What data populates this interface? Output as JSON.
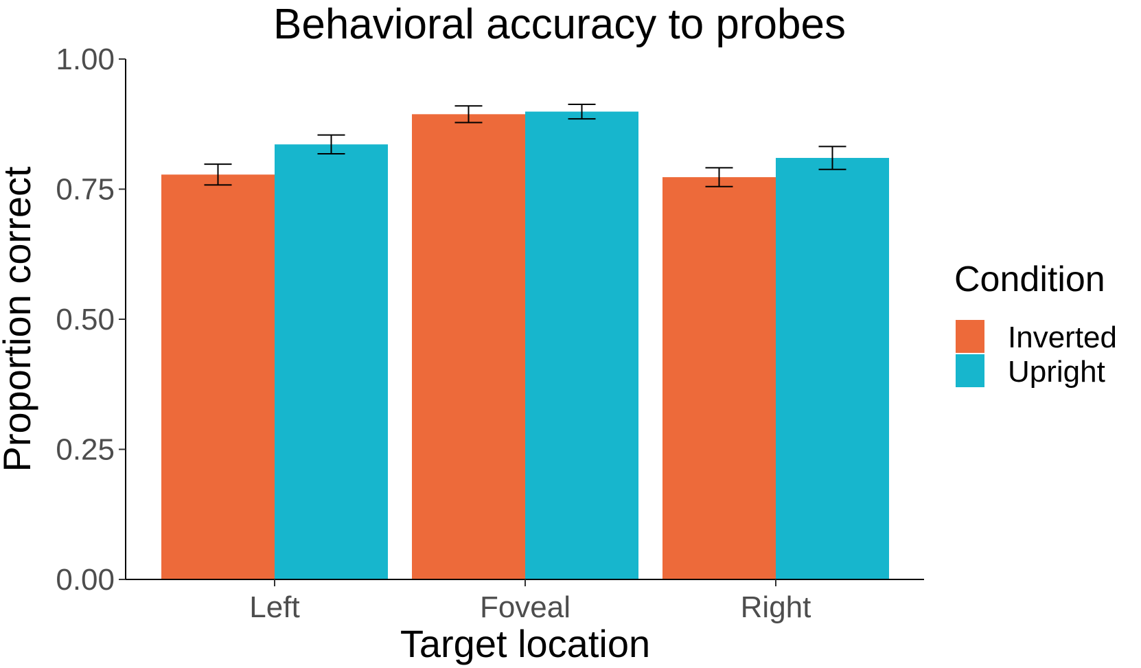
{
  "chart_data": {
    "type": "bar",
    "title": "Behavioral accuracy to probes",
    "xlabel": "Target location",
    "ylabel": "Proportion correct",
    "categories": [
      "Left",
      "Foveal",
      "Right"
    ],
    "ylim": [
      0,
      1
    ],
    "yticks": [
      "0.00",
      "0.25",
      "0.50",
      "0.75",
      "1.00"
    ],
    "ytick_values": [
      0,
      0.25,
      0.5,
      0.75,
      1.0
    ],
    "grid": false,
    "legend": {
      "title": "Condition",
      "position": "right"
    },
    "series": [
      {
        "name": "Inverted",
        "color": "#ED6A3A",
        "values": [
          0.778,
          0.894,
          0.773
        ],
        "error": [
          0.02,
          0.016,
          0.018
        ]
      },
      {
        "name": "Upright",
        "color": "#17B6CD",
        "values": [
          0.836,
          0.899,
          0.81
        ],
        "error": [
          0.018,
          0.014,
          0.022
        ]
      }
    ]
  }
}
